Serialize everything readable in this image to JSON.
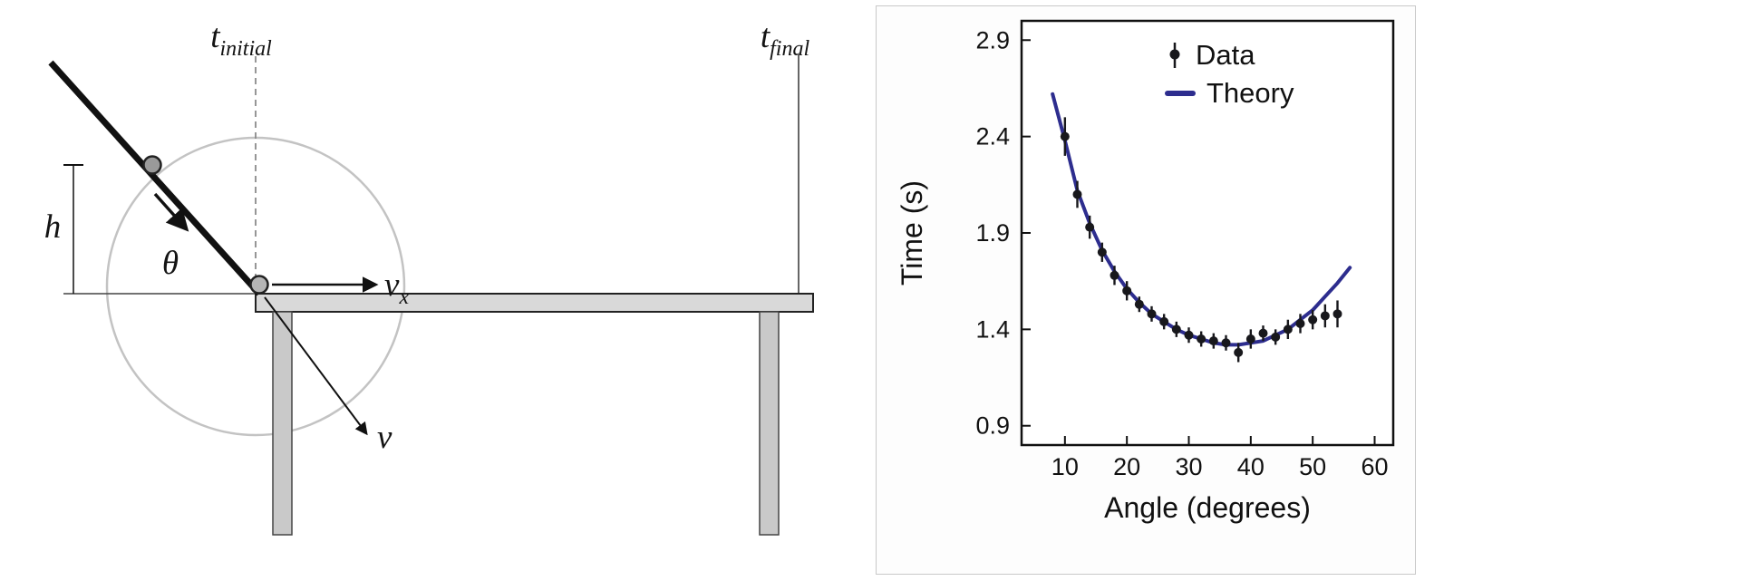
{
  "diagram": {
    "labels": {
      "t_initial": {
        "base": "t",
        "sub": "initial"
      },
      "t_final": {
        "base": "t",
        "sub": "final"
      },
      "height": "h",
      "angle": "θ",
      "velocity_x": {
        "base": "v",
        "sub": "x"
      },
      "velocity": "v"
    },
    "colors": {
      "table_fill": "#d9d9d9",
      "leg_fill": "#c9c9c9",
      "guide_circle": "#c3c3c3"
    }
  },
  "chart_data": {
    "type": "scatter",
    "title": "",
    "xlabel": "Angle (degrees)",
    "ylabel": "Time (s)",
    "xlim": [
      3,
      63
    ],
    "ylim": [
      0.8,
      3.0
    ],
    "xticks": [
      10,
      20,
      30,
      40,
      50,
      60
    ],
    "yticks": [
      0.9,
      1.4,
      1.9,
      2.4,
      2.9
    ],
    "grid": false,
    "legend_position": "upper-center-inside",
    "series": [
      {
        "name": "Data",
        "type": "scatter",
        "color": "#18181c",
        "x": [
          10,
          12,
          14,
          16,
          18,
          20,
          22,
          24,
          26,
          28,
          30,
          32,
          34,
          36,
          38,
          40,
          42,
          44,
          46,
          48,
          50,
          52,
          54
        ],
        "y": [
          2.4,
          2.1,
          1.93,
          1.8,
          1.68,
          1.6,
          1.53,
          1.48,
          1.44,
          1.4,
          1.37,
          1.35,
          1.34,
          1.33,
          1.28,
          1.35,
          1.38,
          1.36,
          1.4,
          1.43,
          1.45,
          1.47,
          1.48
        ],
        "yerr": [
          0.1,
          0.07,
          0.06,
          0.05,
          0.05,
          0.05,
          0.04,
          0.04,
          0.04,
          0.04,
          0.04,
          0.04,
          0.04,
          0.04,
          0.05,
          0.05,
          0.04,
          0.04,
          0.05,
          0.05,
          0.05,
          0.06,
          0.07
        ]
      },
      {
        "name": "Theory",
        "type": "line",
        "color": "#2d2d8e",
        "x": [
          8,
          10,
          12,
          14,
          16,
          18,
          20,
          22,
          24,
          26,
          28,
          30,
          32,
          34,
          36,
          38,
          40,
          42,
          44,
          46,
          48,
          50,
          52,
          54,
          56
        ],
        "y": [
          2.62,
          2.38,
          2.12,
          1.95,
          1.81,
          1.7,
          1.61,
          1.54,
          1.48,
          1.44,
          1.4,
          1.37,
          1.35,
          1.33,
          1.32,
          1.32,
          1.33,
          1.34,
          1.37,
          1.4,
          1.45,
          1.5,
          1.57,
          1.64,
          1.72
        ]
      }
    ]
  }
}
